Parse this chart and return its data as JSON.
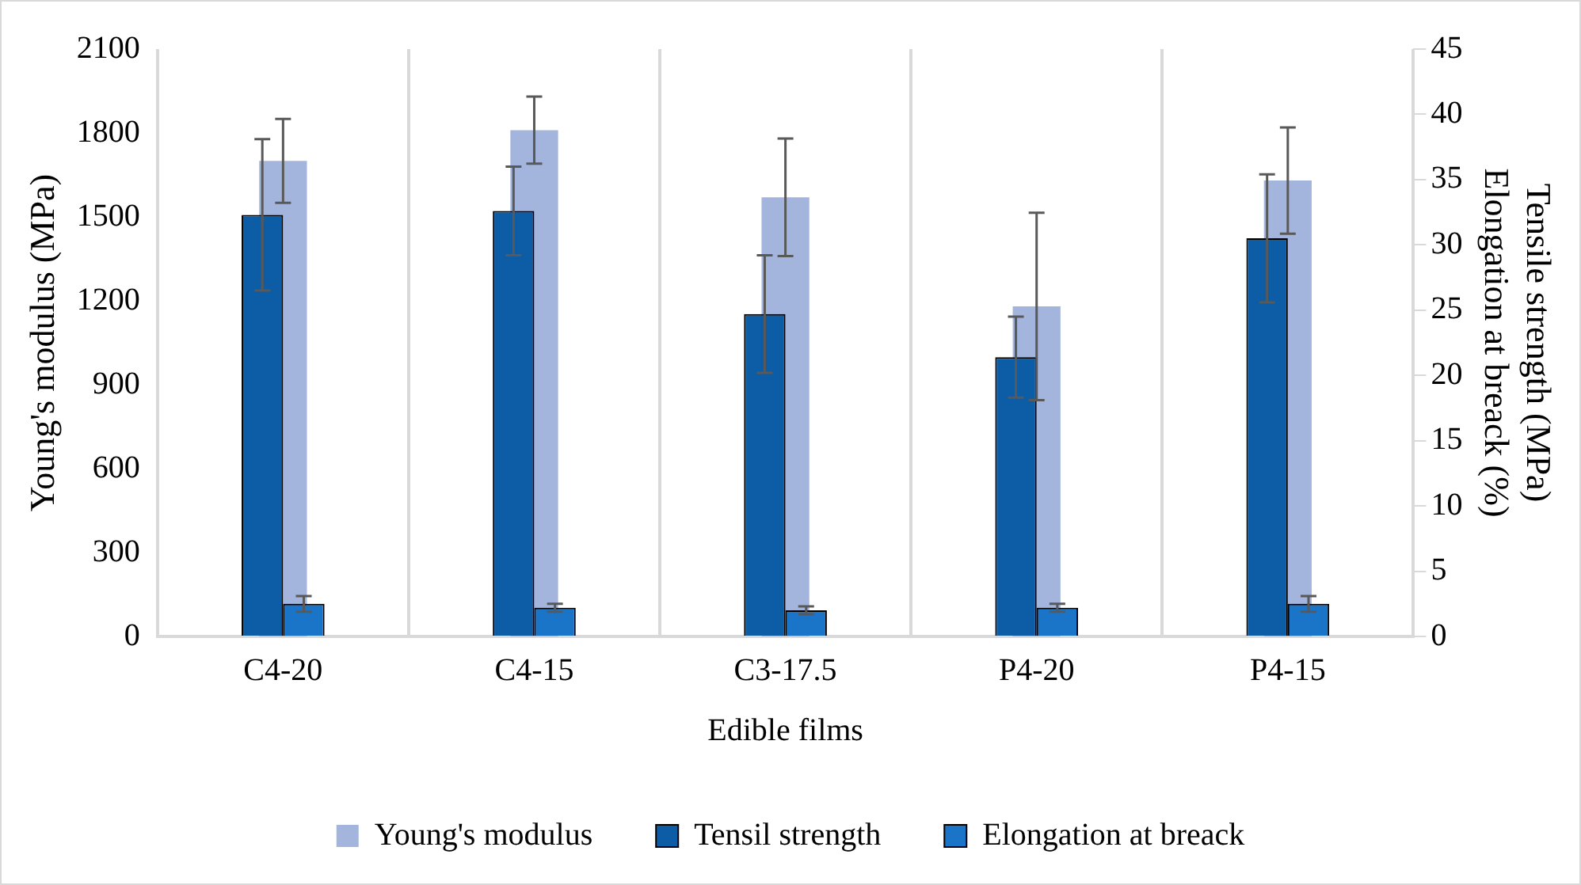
{
  "chart_data": {
    "type": "bar",
    "xlabel": "Edible films",
    "ylabel": "Young's modulus (MPa)",
    "y2label": "Tensile strength (MPa)\nElongation at breack (%)",
    "categories": [
      "C4-20",
      "C4-15",
      "C3-17.5",
      "P4-20",
      "P4-15"
    ],
    "series": [
      {
        "name": "Young's modulus",
        "color": "#a3b5dc",
        "values": [
          1700,
          1810,
          1570,
          1180,
          1630
        ],
        "errors": [
          150,
          120,
          210,
          335,
          190
        ]
      },
      {
        "name": "Tensil strength",
        "color": "#0d5ca6",
        "axis": "y2",
        "values": [
          32.3,
          32.6,
          24.7,
          21.4,
          30.5
        ],
        "errors": [
          5.8,
          3.4,
          4.5,
          3.1,
          4.9
        ]
      },
      {
        "name": "Elongation at breack",
        "color": "#1a74c8",
        "axis": "y2",
        "values": [
          2.5,
          2.2,
          2.0,
          2.2,
          2.5
        ],
        "errors": [
          0.6,
          0.3,
          0.3,
          0.3,
          0.6
        ]
      }
    ],
    "ylim": [
      0,
      2100
    ],
    "yticks": [
      0,
      300,
      600,
      900,
      1200,
      1500,
      1800,
      2100
    ],
    "y2lim": [
      0,
      45
    ],
    "y2ticks": [
      0,
      5,
      10,
      15,
      20,
      25,
      30,
      35,
      40,
      45
    ],
    "grid": "x",
    "legend": "bottom"
  }
}
